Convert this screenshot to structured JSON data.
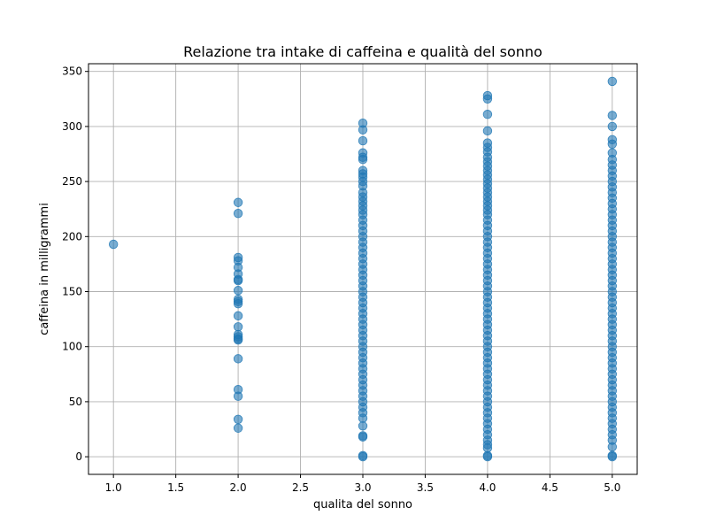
{
  "chart_data": {
    "type": "scatter",
    "title": "Relazione tra intake di caffeina e qualità del sonno",
    "xlabel": "qualita del sonno",
    "ylabel": "caffeina in milligrammi",
    "xlim": [
      0.8,
      5.2
    ],
    "ylim": [
      -16,
      357
    ],
    "xticks": [
      1.0,
      1.5,
      2.0,
      2.5,
      3.0,
      3.5,
      4.0,
      4.5,
      5.0
    ],
    "xtick_labels": [
      "1.0",
      "1.5",
      "2.0",
      "2.5",
      "3.0",
      "3.5",
      "4.0",
      "4.5",
      "5.0"
    ],
    "yticks": [
      0,
      50,
      100,
      150,
      200,
      250,
      300,
      350
    ],
    "ytick_labels": [
      "0",
      "50",
      "100",
      "150",
      "200",
      "250",
      "300",
      "350"
    ],
    "grid": true,
    "marker_color": "#1f77b4",
    "marker_alpha": 0.6,
    "series": [
      {
        "x": 1.0,
        "y": [
          193
        ]
      },
      {
        "x": 2.0,
        "y": [
          231,
          221,
          181,
          178,
          172,
          166,
          161,
          160,
          151,
          143,
          141,
          139,
          128,
          118,
          111,
          109,
          107,
          106,
          89,
          61,
          55,
          34,
          26
        ]
      },
      {
        "x": 3.0,
        "y": [
          303,
          297,
          287,
          276,
          272,
          270,
          260,
          257,
          254,
          250,
          246,
          240,
          236,
          232,
          228,
          224,
          220,
          215,
          210,
          205,
          200,
          195,
          190,
          185,
          180,
          175,
          170,
          165,
          160,
          155,
          150,
          145,
          140,
          135,
          130,
          125,
          120,
          115,
          110,
          105,
          100,
          95,
          90,
          85,
          80,
          75,
          70,
          65,
          60,
          55,
          50,
          45,
          40,
          35,
          28,
          19,
          18,
          1,
          0
        ]
      },
      {
        "x": 4.0,
        "y": [
          328,
          325,
          311,
          296,
          285,
          281,
          277,
          272,
          268,
          264,
          260,
          256,
          252,
          248,
          244,
          240,
          236,
          232,
          228,
          224,
          220,
          215,
          210,
          205,
          200,
          195,
          190,
          185,
          180,
          175,
          170,
          165,
          160,
          155,
          150,
          145,
          140,
          135,
          130,
          125,
          120,
          115,
          110,
          105,
          100,
          95,
          90,
          85,
          80,
          75,
          70,
          65,
          60,
          55,
          50,
          45,
          40,
          35,
          30,
          25,
          20,
          15,
          11,
          8,
          1,
          0
        ]
      },
      {
        "x": 5.0,
        "y": [
          341,
          310,
          300,
          288,
          284,
          276,
          270,
          265,
          260,
          255,
          250,
          245,
          240,
          235,
          230,
          225,
          220,
          215,
          210,
          205,
          200,
          195,
          190,
          185,
          180,
          175,
          170,
          165,
          160,
          155,
          150,
          145,
          140,
          135,
          130,
          125,
          120,
          115,
          110,
          105,
          100,
          95,
          90,
          85,
          80,
          75,
          70,
          65,
          60,
          55,
          50,
          45,
          40,
          35,
          30,
          25,
          20,
          15,
          9,
          1,
          0
        ]
      }
    ]
  }
}
